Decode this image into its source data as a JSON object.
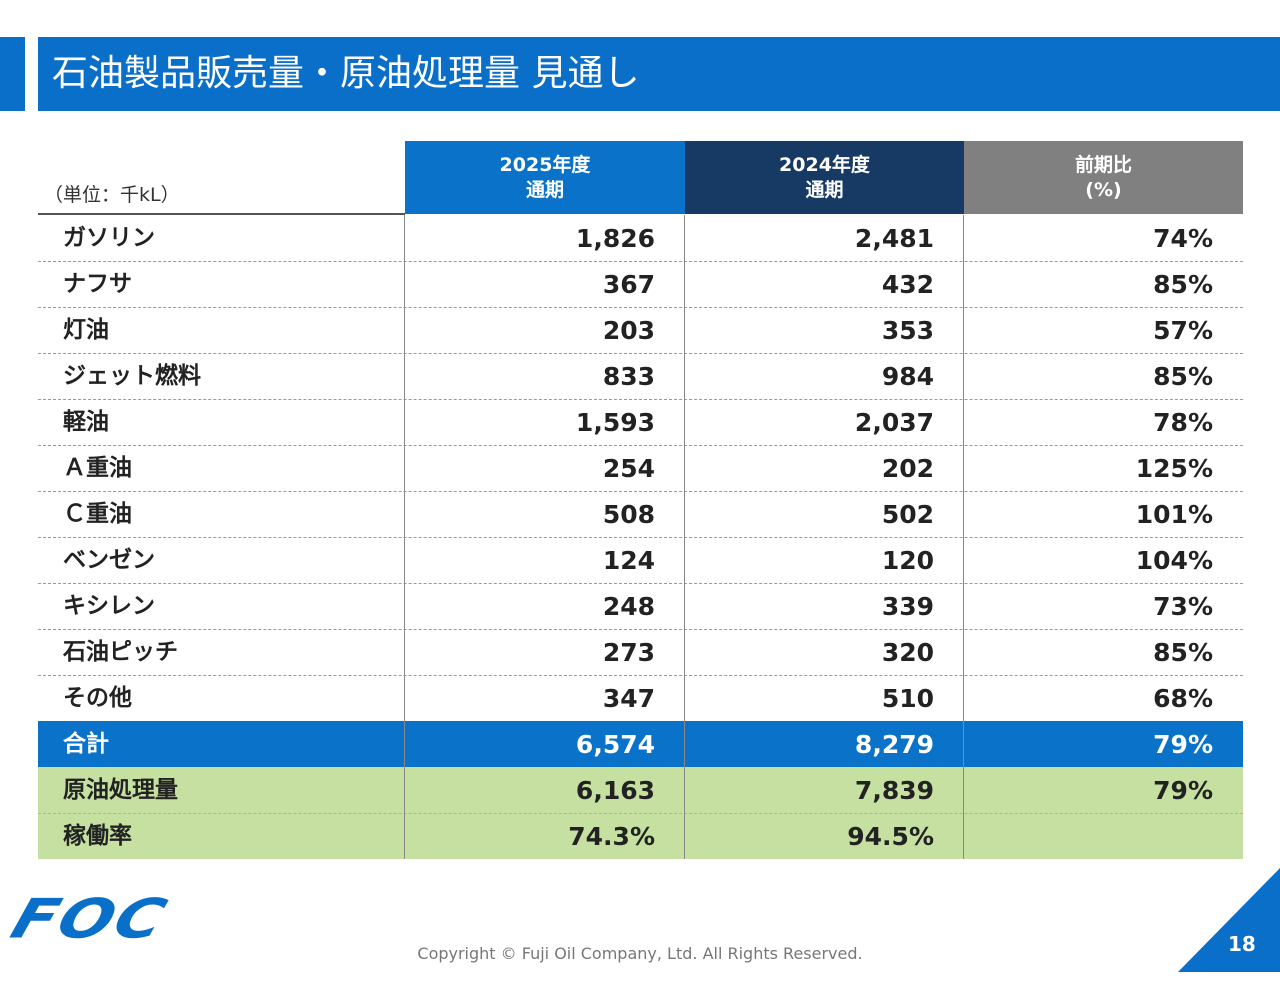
{
  "header": {
    "title": "石油製品販売量・原油処理量 見通し"
  },
  "table": {
    "unit": "（単位：千kL）",
    "columns": [
      [
        "2025年度",
        "通期"
      ],
      [
        "2024年度",
        "通期"
      ],
      [
        "前期比",
        "(%)"
      ]
    ],
    "rows": [
      [
        "ガソリン",
        "1,826",
        "2,481",
        "74%"
      ],
      [
        "ナフサ",
        "367",
        "432",
        "85%"
      ],
      [
        "灯油",
        "203",
        "353",
        "57%"
      ],
      [
        "ジェット燃料",
        "833",
        "984",
        "85%"
      ],
      [
        "軽油",
        "1,593",
        "2,037",
        "78%"
      ],
      [
        "Ａ重油",
        "254",
        "202",
        "125%"
      ],
      [
        "Ｃ重油",
        "508",
        "502",
        "101%"
      ],
      [
        "ベンゼン",
        "124",
        "120",
        "104%"
      ],
      [
        "キシレン",
        "248",
        "339",
        "73%"
      ],
      [
        "石油ピッチ",
        "273",
        "320",
        "85%"
      ],
      [
        "その他",
        "347",
        "510",
        "68%"
      ],
      [
        "合計",
        "6,574",
        "8,279",
        "79%"
      ],
      [
        "原油処理量",
        "6,163",
        "7,839",
        "79%"
      ],
      [
        "稼働率",
        "74.3%",
        "94.5%"
      ]
    ]
  },
  "footer": {
    "logo": "FOC",
    "copyright": "Copyright © Fuji Oil Company, Ltd. All Rights Reserved.",
    "page": "18"
  }
}
